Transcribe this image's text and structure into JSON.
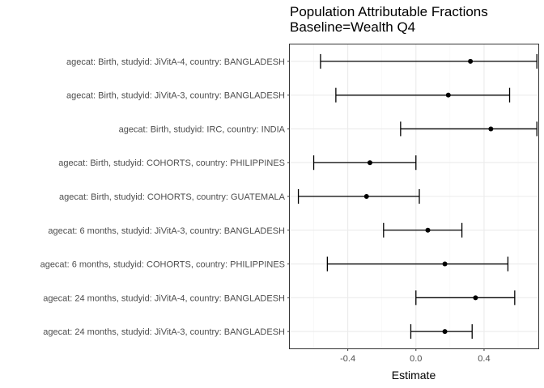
{
  "chart_data": {
    "type": "errorbar",
    "title": [
      "Population Attributable Fractions",
      "Baseline=Wealth Q4"
    ],
    "xlabel": "Estimate",
    "ylabel": "",
    "xlim": [
      -0.7403,
      0.7186
    ],
    "xticks": [
      -0.4,
      0.0,
      0.4
    ],
    "xtick_labels": [
      "-0.4",
      "0.0",
      "0.4"
    ],
    "grid": true,
    "categories": [
      "agecat: Birth, studyid: JiVitA-4, country: BANGLADESH",
      "agecat: Birth, studyid: JiVitA-3, country: BANGLADESH",
      "agecat: Birth, studyid: IRC, country: INDIA",
      "agecat: Birth, studyid: COHORTS, country: PHILIPPINES",
      "agecat: Birth, studyid: COHORTS, country: GUATEMALA",
      "agecat: 6 months, studyid: JiVitA-3, country: BANGLADESH",
      "agecat: 6 months, studyid: COHORTS, country: PHILIPPINES",
      "agecat: 24 months, studyid: JiVitA-4, country: BANGLADESH",
      "agecat: 24 months, studyid: JiVitA-3, country: BANGLADESH"
    ],
    "estimates": [
      0.32,
      0.19,
      0.44,
      -0.27,
      -0.29,
      0.07,
      0.17,
      0.35,
      0.17
    ],
    "lower": [
      -0.56,
      -0.47,
      -0.09,
      -0.6,
      -0.69,
      -0.19,
      -0.52,
      0.0,
      -0.03
    ],
    "upper": [
      0.71,
      0.55,
      0.71,
      0.0,
      0.02,
      0.27,
      0.54,
      0.58,
      0.33
    ],
    "colors": {
      "panel_border": "#333333",
      "grid_major": "#ebebeb",
      "grid_minor": "#f5f5f5",
      "marks": "#000000",
      "text": "#4d4d4d"
    }
  }
}
